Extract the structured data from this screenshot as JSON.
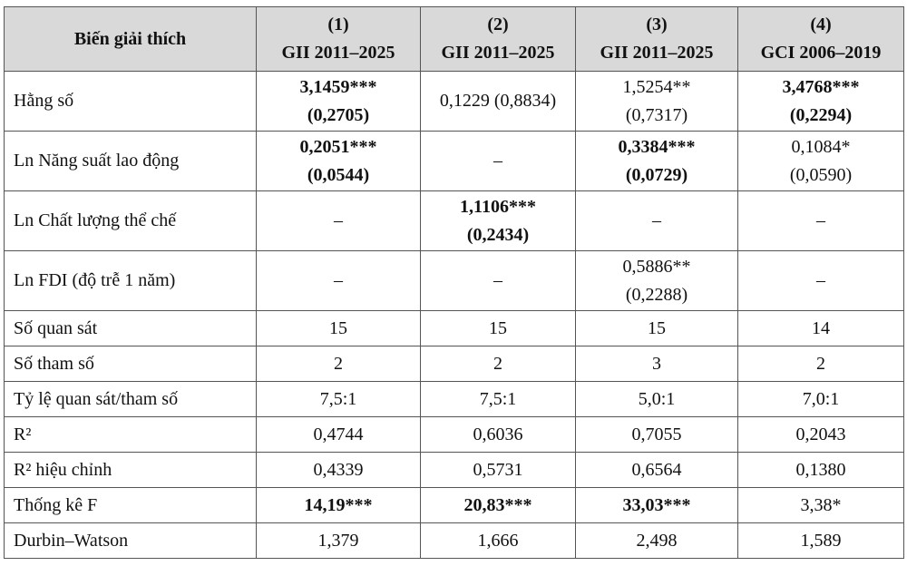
{
  "table": {
    "header": [
      [
        "Biến giải thích"
      ],
      [
        "(1)",
        "GII 2011–2025"
      ],
      [
        "(2)",
        "GII 2011–2025"
      ],
      [
        "(3)",
        "GII 2011–2025"
      ],
      [
        "(4)",
        "GCI 2006–2019"
      ]
    ],
    "rows": [
      {
        "label": "Hằng số",
        "cells": [
          {
            "lines": [
              "3,1459***",
              "(0,2705)"
            ],
            "bold": true
          },
          {
            "lines": [
              "0,1229 (0,8834)"
            ]
          },
          {
            "lines": [
              "1,5254**",
              "(0,7317)"
            ]
          },
          {
            "lines": [
              "3,4768***",
              "(0,2294)"
            ],
            "bold": true
          }
        ]
      },
      {
        "label": "Ln Năng suất lao động",
        "cells": [
          {
            "lines": [
              "0,2051***",
              "(0,0544)"
            ],
            "bold": true
          },
          {
            "lines": [
              "–"
            ]
          },
          {
            "lines": [
              "0,3384***",
              "(0,0729)"
            ],
            "bold": true
          },
          {
            "lines": [
              "0,1084*",
              "(0,0590)"
            ]
          }
        ]
      },
      {
        "label": "Ln Chất lượng thể chế",
        "cells": [
          {
            "lines": [
              "–"
            ]
          },
          {
            "lines": [
              "1,1106***",
              "(0,2434)"
            ],
            "bold": true
          },
          {
            "lines": [
              "–"
            ]
          },
          {
            "lines": [
              "–"
            ]
          }
        ]
      },
      {
        "label": "Ln FDI (độ trễ 1 năm)",
        "cells": [
          {
            "lines": [
              "–"
            ]
          },
          {
            "lines": [
              "–"
            ]
          },
          {
            "lines": [
              "0,5886**",
              "(0,2288)"
            ]
          },
          {
            "lines": [
              "–"
            ]
          }
        ]
      },
      {
        "label": "Số quan sát",
        "cells": [
          {
            "lines": [
              "15"
            ]
          },
          {
            "lines": [
              "15"
            ]
          },
          {
            "lines": [
              "15"
            ]
          },
          {
            "lines": [
              "14"
            ]
          }
        ]
      },
      {
        "label": "Số tham số",
        "cells": [
          {
            "lines": [
              "2"
            ]
          },
          {
            "lines": [
              "2"
            ]
          },
          {
            "lines": [
              "3"
            ]
          },
          {
            "lines": [
              "2"
            ]
          }
        ]
      },
      {
        "label": "Tỷ lệ quan sát/tham số",
        "cells": [
          {
            "lines": [
              "7,5:1"
            ]
          },
          {
            "lines": [
              "7,5:1"
            ]
          },
          {
            "lines": [
              "5,0:1"
            ]
          },
          {
            "lines": [
              "7,0:1"
            ]
          }
        ]
      },
      {
        "label": "R²",
        "cells": [
          {
            "lines": [
              "0,4744"
            ]
          },
          {
            "lines": [
              "0,6036"
            ]
          },
          {
            "lines": [
              "0,7055"
            ]
          },
          {
            "lines": [
              "0,2043"
            ]
          }
        ]
      },
      {
        "label": "R² hiệu chỉnh",
        "cells": [
          {
            "lines": [
              "0,4339"
            ]
          },
          {
            "lines": [
              "0,5731"
            ]
          },
          {
            "lines": [
              "0,6564"
            ]
          },
          {
            "lines": [
              "0,1380"
            ]
          }
        ]
      },
      {
        "label": "Thống kê F",
        "cells": [
          {
            "lines": [
              "14,19***"
            ],
            "bold": true
          },
          {
            "lines": [
              "20,83***"
            ],
            "bold": true
          },
          {
            "lines": [
              "33,03***"
            ],
            "bold": true
          },
          {
            "lines": [
              "3,38*"
            ]
          }
        ]
      },
      {
        "label": "Durbin–Watson",
        "cells": [
          {
            "lines": [
              "1,379"
            ]
          },
          {
            "lines": [
              "1,666"
            ]
          },
          {
            "lines": [
              "2,498"
            ]
          },
          {
            "lines": [
              "1,589"
            ]
          }
        ]
      }
    ]
  }
}
